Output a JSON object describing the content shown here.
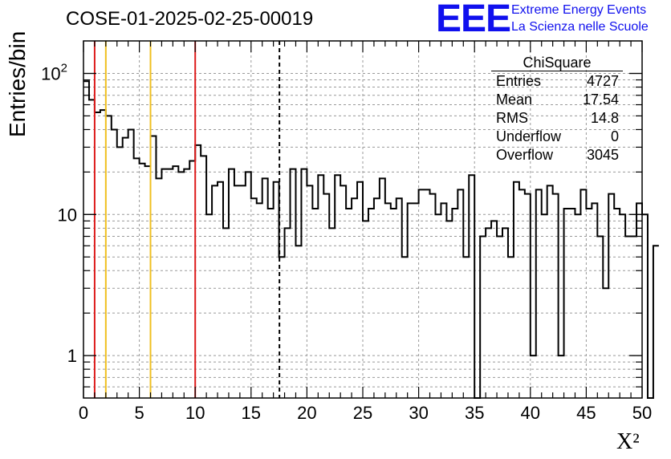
{
  "chart_data": {
    "type": "bar",
    "style": "step-histogram",
    "title": "COSE-01-2025-02-25-00019",
    "xlabel": "X²",
    "ylabel": "Entries/bin",
    "xlim": [
      0,
      50
    ],
    "ylim": [
      0.5,
      170
    ],
    "yscale": "log",
    "grid": true,
    "bin_width": 0.5,
    "values": [
      88,
      65,
      53,
      55,
      50,
      40,
      30,
      35,
      40,
      25,
      23,
      22,
      36,
      18,
      21,
      21,
      22,
      20,
      21,
      24,
      31,
      26,
      10,
      16,
      17,
      8,
      21,
      16,
      16,
      20,
      13,
      12,
      18,
      11,
      17,
      5,
      8,
      21,
      6,
      21,
      16,
      11,
      19,
      14,
      8,
      19,
      16,
      11,
      13,
      17,
      9,
      11,
      13,
      18,
      12,
      11,
      13,
      5,
      12,
      12,
      15,
      15,
      14,
      10,
      12,
      9,
      11,
      15,
      5,
      19,
      0.4,
      7,
      8,
      9,
      7,
      8,
      5,
      17,
      15,
      14,
      1,
      15,
      10,
      16,
      14,
      1,
      11,
      11,
      10,
      15,
      11,
      12,
      7,
      3,
      14,
      11,
      10,
      7,
      7,
      12,
      10,
      0.4,
      6
    ],
    "ticks": {
      "x": [
        "0",
        "5",
        "10",
        "15",
        "20",
        "25",
        "30",
        "35",
        "40",
        "45",
        "50"
      ],
      "y": [
        {
          "label": "1",
          "value": 1
        },
        {
          "label": "10",
          "value": 10
        },
        {
          "label": "10",
          "exp": "2",
          "value": 100
        }
      ]
    },
    "vertical_lines": [
      {
        "x": 1,
        "color": "#dd1b1b",
        "style": "solid"
      },
      {
        "x": 2,
        "color": "#f0c020",
        "style": "solid"
      },
      {
        "x": 6,
        "color": "#f0c020",
        "style": "solid"
      },
      {
        "x": 10,
        "color": "#dd1b1b",
        "style": "solid"
      },
      {
        "x": 17.54,
        "color": "#000000",
        "style": "dashed"
      }
    ],
    "stats_box": {
      "name": "ChiSquare",
      "rows": [
        {
          "label": "Entries",
          "value": "4727"
        },
        {
          "label": "Mean",
          "value": "17.54"
        },
        {
          "label": "RMS",
          "value": "14.8"
        },
        {
          "label": "Underflow",
          "value": "0"
        },
        {
          "label": "Overflow",
          "value": "3045"
        }
      ]
    }
  },
  "logo": {
    "mark": "EEE",
    "line1": "Extreme Energy Events",
    "line2": "La Scienza nelle Scuole",
    "color": "#1010ee"
  }
}
